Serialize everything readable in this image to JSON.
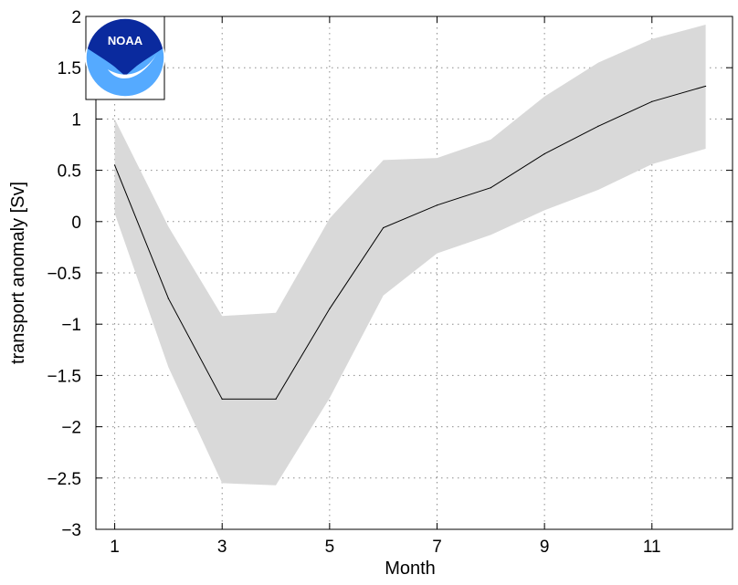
{
  "chart_data": {
    "type": "line",
    "title": "",
    "xlabel": "Month",
    "ylabel": "transport anomaly [Sv]",
    "xlim": [
      0.65,
      12.5
    ],
    "ylim": [
      -3,
      2
    ],
    "x_ticks": [
      1,
      3,
      5,
      7,
      9,
      11
    ],
    "y_ticks": [
      2,
      1.5,
      1,
      0.5,
      0,
      -0.5,
      -1,
      -1.5,
      -2,
      -2.5,
      -3
    ],
    "x_tick_labels": [
      "1",
      "3",
      "5",
      "7",
      "9",
      "11"
    ],
    "y_tick_labels": [
      "2",
      "1.5",
      "1",
      "0.5",
      "0",
      "−0.5",
      "−1",
      "−1.5",
      "−2",
      "−2.5",
      "−3"
    ],
    "grid": true,
    "x": [
      1,
      2,
      3,
      4,
      5,
      6,
      7,
      8,
      9,
      10,
      11,
      12
    ],
    "series": [
      {
        "role": "mean",
        "color": "#000000",
        "values": [
          0.55,
          -0.75,
          -1.73,
          -1.73,
          -0.85,
          -0.06,
          0.16,
          0.33,
          0.66,
          0.93,
          1.17,
          1.32
        ]
      }
    ],
    "band": {
      "color": "#d9d9d9",
      "upper": [
        1.0,
        -0.05,
        -0.92,
        -0.89,
        0.03,
        0.6,
        0.62,
        0.8,
        1.22,
        1.55,
        1.78,
        1.92
      ],
      "lower": [
        0.08,
        -1.42,
        -2.55,
        -2.57,
        -1.72,
        -0.72,
        -0.31,
        -0.13,
        0.11,
        0.31,
        0.56,
        0.71
      ]
    }
  },
  "logo": {
    "text": "NOAA",
    "colors": {
      "navy": "#0a2a9e",
      "light_blue": "#55aaff",
      "white": "#ffffff"
    }
  }
}
